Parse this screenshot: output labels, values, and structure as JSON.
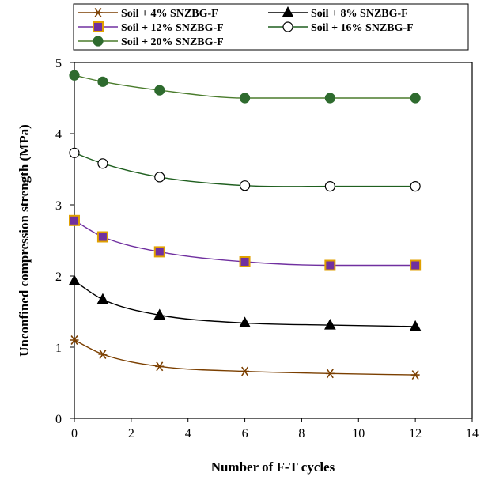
{
  "chart_data": {
    "type": "line",
    "xlabel": "Number of F-T cycles",
    "ylabel": "Unconfined compression strength (MPa)",
    "xlim": [
      0,
      14
    ],
    "ylim": [
      0,
      5
    ],
    "xticks": [
      0,
      2,
      4,
      6,
      8,
      10,
      12,
      14
    ],
    "yticks": [
      0,
      1,
      2,
      3,
      4,
      5
    ],
    "grid": false,
    "legend_position": "top",
    "x": [
      0,
      1,
      3,
      6,
      9,
      12
    ],
    "series": [
      {
        "name": "Soil + 4% SNZBG-F",
        "values": [
          1.1,
          0.9,
          0.73,
          0.66,
          0.63,
          0.61
        ],
        "color": "#7b3f00",
        "marker": "star",
        "marker_fill": "#7b3f00",
        "marker_stroke": "#7b3f00"
      },
      {
        "name": "Soil + 8% SNZBG-F",
        "values": [
          1.93,
          1.67,
          1.45,
          1.34,
          1.31,
          1.29
        ],
        "color": "#000000",
        "marker": "triangle",
        "marker_fill": "#000000",
        "marker_stroke": "#000000"
      },
      {
        "name": "Soil + 12% SNZBG-F",
        "values": [
          2.78,
          2.55,
          2.34,
          2.2,
          2.15,
          2.15
        ],
        "color": "#7030a0",
        "marker": "square",
        "marker_fill": "#7030a0",
        "marker_stroke": "#e0a000"
      },
      {
        "name": "Soil + 16% SNZBG-F",
        "values": [
          3.73,
          3.58,
          3.39,
          3.27,
          3.26,
          3.26
        ],
        "color": "#1f5f1f",
        "marker": "circle-open",
        "marker_fill": "#ffffff",
        "marker_stroke": "#000000"
      },
      {
        "name": "Soil + 20% SNZBG-F",
        "values": [
          4.82,
          4.73,
          4.61,
          4.5,
          4.5,
          4.5
        ],
        "color": "#4a7c2c",
        "marker": "circle",
        "marker_fill": "#2e6b2e",
        "marker_stroke": "#2e6b2e"
      }
    ]
  }
}
